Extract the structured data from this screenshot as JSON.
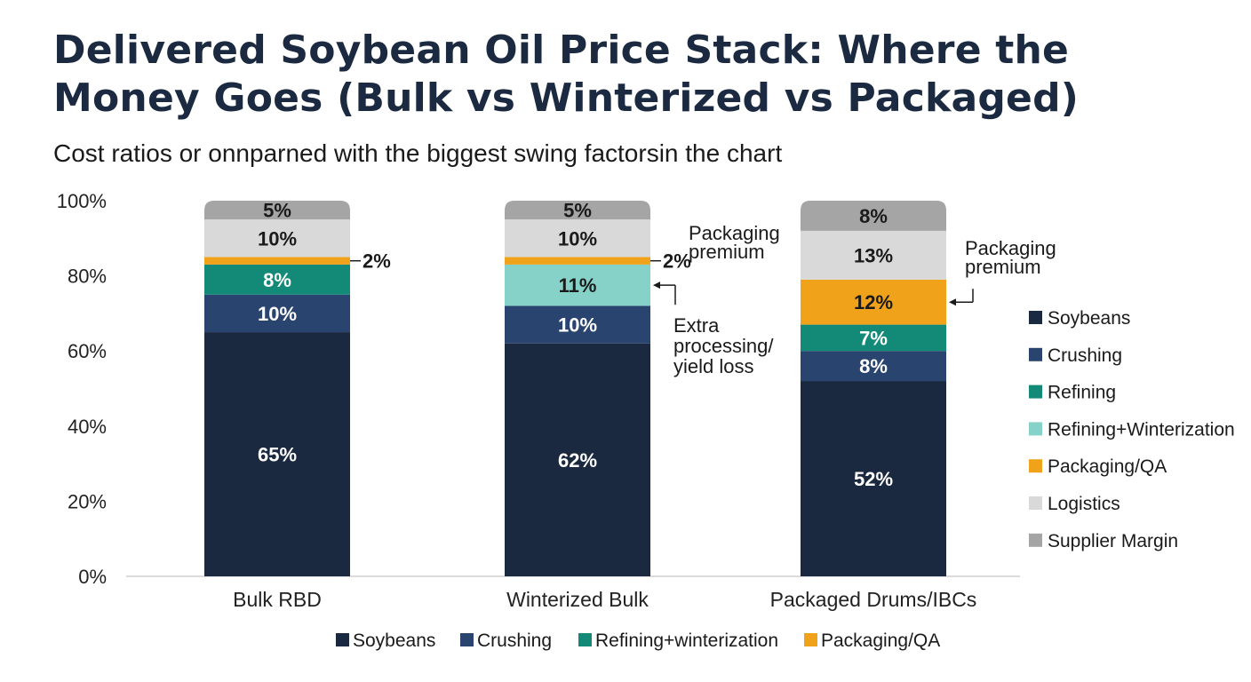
{
  "chart_data": {
    "type": "bar",
    "stacked": true,
    "title": "Delivered Soybean Oil Price Stack: Where the Money Goes (Bulk vs Winterized vs Packaged)",
    "subtitle": "Cost ratios or onnparned with the biggest swing factorsin the chart",
    "ylim": [
      0,
      100
    ],
    "y_ticks": [
      "0%",
      "20%",
      "40%",
      "60%",
      "80%",
      "100%"
    ],
    "grid": true,
    "categories": [
      "Bulk RBD",
      "Winterized Bulk",
      "Packaged Drums/IBCs"
    ],
    "series": [
      {
        "name": "Soybeans",
        "color": "#1b2940",
        "values": [
          65,
          62,
          52
        ],
        "labels": [
          "65%",
          "62%",
          "52%"
        ]
      },
      {
        "name": "Crushing",
        "color": "#2a4470",
        "values": [
          10,
          10,
          8
        ],
        "labels": [
          "10%",
          "10%",
          "8%"
        ]
      },
      {
        "name": "Refining",
        "color": "#138a78",
        "values": [
          8,
          0,
          7
        ],
        "labels": [
          "8%",
          "",
          "7%"
        ]
      },
      {
        "name": "Refining+Winterization",
        "color": "#86d2c8",
        "values": [
          0,
          11,
          0
        ],
        "labels": [
          "",
          "11%",
          ""
        ]
      },
      {
        "name": "Packaging/QA",
        "color": "#f0a21b",
        "values": [
          2,
          2,
          12
        ],
        "labels": [
          "2%",
          "2%",
          "12%"
        ]
      },
      {
        "name": "Logistics",
        "color": "#d9d9d9",
        "values": [
          10,
          10,
          13
        ],
        "labels": [
          "10%",
          "10%",
          "13%"
        ]
      },
      {
        "name": "Supplier Margin",
        "color": "#a5a5a5",
        "values": [
          5,
          5,
          8
        ],
        "labels": [
          "5%",
          "5%",
          "8%"
        ]
      }
    ],
    "legend_right": [
      "Soybeans",
      "Crushing",
      "Refining",
      "Refining+Winterization",
      "Packaging/QA",
      "Logistics",
      "Supplier Margin"
    ],
    "legend_bottom": [
      {
        "label": "Soybeans",
        "color": "#1b2940"
      },
      {
        "label": "Crushing",
        "color": "#2a4470"
      },
      {
        "label": "Refining+winterization",
        "color": "#138a78"
      },
      {
        "label": "Packaging/QA",
        "color": "#f0a21b"
      }
    ],
    "annotations": [
      {
        "text": [
          "Packaging",
          "premium"
        ]
      },
      {
        "text": [
          "Extra",
          "processing/",
          "yield loss"
        ]
      },
      {
        "text": [
          "Packaging",
          "premium"
        ]
      }
    ]
  }
}
